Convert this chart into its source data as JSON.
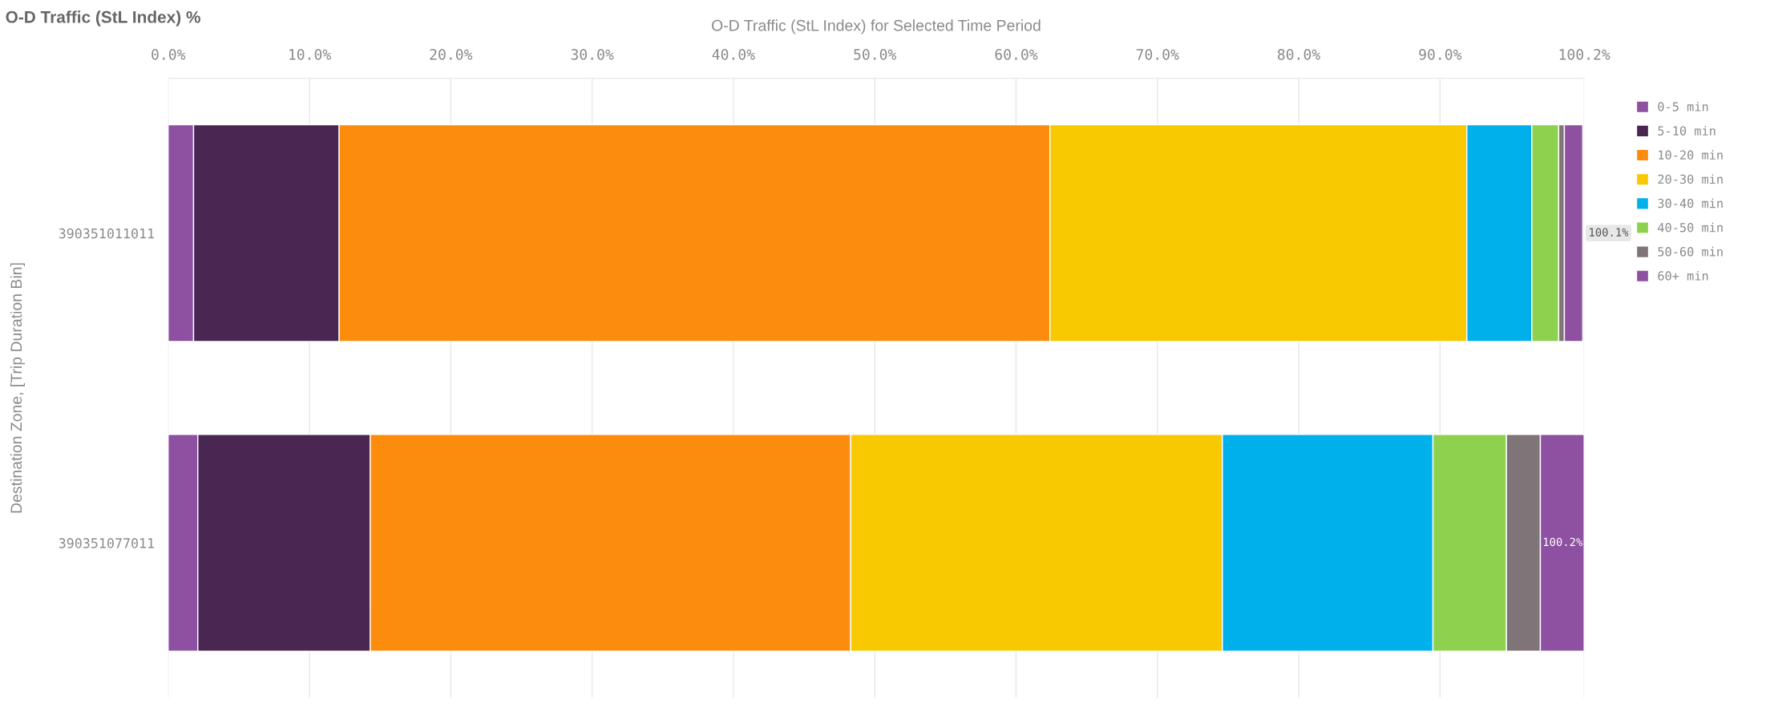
{
  "chart_data": {
    "type": "bar",
    "orientation": "horizontal",
    "stacked": true,
    "title": "O-D Traffic (StL Index) %",
    "xlabel": "O-D Traffic (StL Index) for Selected Time Period",
    "ylabel": "Destination Zone, [Trip Duration Bin]",
    "categories": [
      "390351011011",
      "390351077011"
    ],
    "series": [
      {
        "name": "0-5 min",
        "color": "#8e50a0",
        "values": [
          1.8,
          2.1
        ]
      },
      {
        "name": "5-10 min",
        "color": "#4a2652",
        "values": [
          10.3,
          12.2
        ]
      },
      {
        "name": "10-20 min",
        "color": "#fb8c0e",
        "values": [
          50.3,
          34.0
        ]
      },
      {
        "name": "20-30 min",
        "color": "#f8c800",
        "values": [
          29.5,
          26.3
        ]
      },
      {
        "name": "30-40 min",
        "color": "#00b0eb",
        "values": [
          4.6,
          14.9
        ]
      },
      {
        "name": "40-50 min",
        "color": "#8ed14f",
        "values": [
          1.9,
          5.2
        ]
      },
      {
        "name": "50-60 min",
        "color": "#7f7579",
        "values": [
          0.4,
          2.4
        ]
      },
      {
        "name": "60+ min",
        "color": "#8e50a0",
        "values": [
          1.3,
          3.1
        ]
      }
    ],
    "totals": [
      "100.1%",
      "100.2%"
    ],
    "xlim": [
      0,
      100.2
    ],
    "xticks": [
      {
        "value": 0,
        "label": "0.0%"
      },
      {
        "value": 10,
        "label": "10.0%"
      },
      {
        "value": 20,
        "label": "20.0%"
      },
      {
        "value": 30,
        "label": "30.0%"
      },
      {
        "value": 40,
        "label": "40.0%"
      },
      {
        "value": 50,
        "label": "50.0%"
      },
      {
        "value": 60,
        "label": "60.0%"
      },
      {
        "value": 70,
        "label": "70.0%"
      },
      {
        "value": 80,
        "label": "80.0%"
      },
      {
        "value": 90,
        "label": "90.0%"
      },
      {
        "value": 100.2,
        "label": "100.2%"
      }
    ],
    "grid": "x",
    "legend": "right"
  }
}
